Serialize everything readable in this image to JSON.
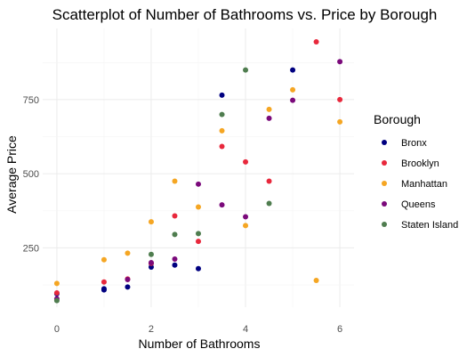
{
  "chart_data": {
    "type": "scatter",
    "title": "Scatterplot of Number of Bathrooms vs. Price by Borough",
    "xlabel": "Number of Bathrooms",
    "ylabel": "Average Price",
    "xlim": [
      -0.3,
      6.3
    ],
    "ylim": [
      50,
      990
    ],
    "x_ticks": [
      0,
      2,
      4,
      6
    ],
    "y_ticks": [
      250,
      500,
      750
    ],
    "grid": true,
    "legend": {
      "title": "Borough",
      "position": "right"
    },
    "series": [
      {
        "name": "Bronx",
        "color": "#000080",
        "points": [
          [
            0,
            95
          ],
          [
            1,
            108
          ],
          [
            1,
            112
          ],
          [
            1.5,
            118
          ],
          [
            2,
            185
          ],
          [
            2,
            197
          ],
          [
            2.5,
            192
          ],
          [
            3,
            180
          ],
          [
            3.5,
            765
          ],
          [
            5,
            850
          ]
        ]
      },
      {
        "name": "Brooklyn",
        "color": "#e8283c",
        "points": [
          [
            0,
            98
          ],
          [
            1,
            135
          ],
          [
            1.5,
            145
          ],
          [
            2,
            198
          ],
          [
            2.5,
            358
          ],
          [
            3,
            272
          ],
          [
            3.5,
            592
          ],
          [
            4,
            540
          ],
          [
            4.5,
            475
          ],
          [
            5.5,
            945
          ],
          [
            6,
            750
          ]
        ]
      },
      {
        "name": "Manhattan",
        "color": "#f5a623",
        "points": [
          [
            0,
            130
          ],
          [
            1,
            210
          ],
          [
            1.5,
            232
          ],
          [
            2,
            338
          ],
          [
            2.5,
            475
          ],
          [
            3,
            388
          ],
          [
            3.5,
            645
          ],
          [
            4,
            325
          ],
          [
            4.5,
            717
          ],
          [
            5,
            783
          ],
          [
            5.5,
            140
          ],
          [
            6,
            675
          ]
        ]
      },
      {
        "name": "Queens",
        "color": "#7b0a7b",
        "points": [
          [
            0,
            78
          ],
          [
            1.5,
            143
          ],
          [
            2,
            200
          ],
          [
            2.5,
            212
          ],
          [
            3,
            465
          ],
          [
            3.5,
            395
          ],
          [
            4,
            355
          ],
          [
            4.5,
            687
          ],
          [
            5,
            748
          ],
          [
            6,
            878
          ]
        ]
      },
      {
        "name": "Staten Island",
        "color": "#4f7d4f",
        "points": [
          [
            0,
            72
          ],
          [
            2,
            228
          ],
          [
            2.5,
            295
          ],
          [
            3,
            298
          ],
          [
            3.5,
            700
          ],
          [
            4,
            850
          ],
          [
            4.5,
            400
          ]
        ]
      }
    ]
  }
}
